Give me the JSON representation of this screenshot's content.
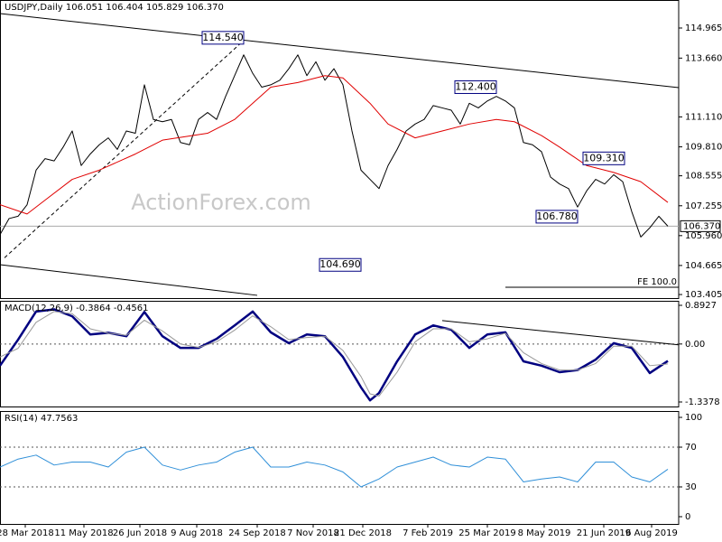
{
  "chart_data": [
    {
      "type": "line",
      "title": "USDJPY,Daily  106.051 106.404 105.829 106.370",
      "watermark": "ActionForex.com",
      "xlim": [
        0,
        376
      ],
      "ylim": [
        103.25,
        116.18
      ],
      "yticks": [
        114.965,
        {
          "value": 113.66,
          "label": "113.660"
        },
        {
          "value": 111.11,
          "label": "111.110"
        },
        {
          "value": 109.81,
          "label": "109.810"
        },
        108.555,
        107.255,
        {
          "value": 105.96,
          "label": "105.960"
        },
        104.665,
        103.405
      ],
      "hlines": [
        106.37
      ],
      "last_price": {
        "value": 106.37,
        "label": "106.370"
      },
      "series": [
        {
          "name": "Price",
          "color": "#000000",
          "width": 1,
          "x": [
            0,
            5,
            10,
            15,
            20,
            25,
            30,
            35,
            40,
            45,
            50,
            55,
            60,
            65,
            70,
            75,
            80,
            85,
            90,
            95,
            100,
            105,
            110,
            115,
            120,
            125,
            130,
            135,
            140,
            145,
            150,
            155,
            160,
            165,
            170,
            175,
            180,
            185,
            190,
            195,
            200,
            205,
            210,
            215,
            220,
            225,
            230,
            235,
            240,
            245,
            250,
            255,
            260,
            265,
            270,
            275,
            280,
            285,
            290,
            295,
            300,
            305,
            310,
            315,
            320,
            325,
            330,
            335,
            340,
            345,
            350,
            355,
            360,
            365,
            370
          ],
          "values": [
            106.0,
            106.7,
            106.8,
            107.3,
            108.8,
            109.3,
            109.2,
            109.8,
            110.5,
            109.0,
            109.5,
            109.9,
            110.2,
            109.7,
            110.5,
            110.4,
            112.5,
            111.0,
            110.9,
            111.0,
            110.0,
            109.9,
            111.0,
            111.3,
            111.0,
            112.0,
            112.9,
            113.8,
            113.0,
            112.4,
            112.5,
            112.7,
            113.2,
            113.8,
            112.9,
            113.5,
            112.7,
            113.2,
            112.5,
            110.5,
            108.8,
            108.4,
            108.0,
            109.0,
            109.7,
            110.5,
            110.8,
            111.0,
            111.6,
            111.5,
            111.4,
            110.8,
            111.7,
            111.5,
            111.8,
            112.0,
            111.8,
            111.5,
            110.0,
            109.9,
            109.6,
            108.5,
            108.2,
            108.0,
            107.2,
            107.9,
            108.4,
            108.2,
            108.6,
            108.3,
            107.0,
            105.9,
            106.3,
            106.8,
            106.37
          ]
        },
        {
          "name": "MA",
          "color": "#e00000",
          "width": 1,
          "x": [
            0,
            15,
            25,
            40,
            55,
            75,
            90,
            115,
            130,
            150,
            165,
            180,
            190,
            205,
            215,
            230,
            245,
            260,
            275,
            285,
            300,
            310,
            325,
            340,
            355,
            370
          ],
          "values": [
            107.3,
            106.9,
            107.5,
            108.4,
            108.8,
            109.5,
            110.1,
            110.4,
            111.0,
            112.4,
            112.6,
            112.9,
            112.8,
            111.7,
            110.8,
            110.2,
            110.5,
            110.8,
            111.0,
            110.9,
            110.3,
            109.8,
            109.0,
            108.7,
            108.3,
            107.4
          ]
        }
      ],
      "trendlines": [
        {
          "x": [
            0,
            376
          ],
          "values": [
            115.59,
            112.38
          ],
          "style": "solid"
        },
        {
          "x": [
            0,
            142.5
          ],
          "values": [
            104.7,
            103.37
          ],
          "style": "solid"
        },
        {
          "x": [
            2.5,
            135
          ],
          "values": [
            105.0,
            114.42
          ],
          "style": "dashed"
        },
        {
          "x": [
            280,
            376
          ],
          "values": [
            103.72,
            103.72
          ],
          "style": "solid"
        }
      ],
      "annotations": [
        {
          "text": "114.540",
          "x": 135,
          "y": 114.54,
          "boxed": true
        },
        {
          "text": "104.690",
          "x": 200,
          "y": 104.69,
          "boxed": true
        },
        {
          "text": "112.400",
          "x": 275,
          "y": 112.4,
          "boxed": true
        },
        {
          "text": "109.310",
          "x": 346,
          "y": 109.31,
          "boxed": true
        },
        {
          "text": "106.780",
          "x": 320,
          "y": 106.78,
          "boxed": true
        },
        {
          "text": "FE 100.0",
          "x": 376,
          "y": 103.95,
          "boxed": false
        }
      ]
    },
    {
      "type": "line",
      "title": "MACD(12,26,9) -0.3864 -0.4561",
      "xlim": [
        0,
        376
      ],
      "ylim": [
        -1.442,
        0.997
      ],
      "yticks": [
        0.8927,
        {
          "value": 0,
          "label": "0.00"
        },
        -1.3378
      ],
      "dashed_levels": [
        0
      ],
      "series": [
        {
          "name": "MACD",
          "color": "#000080",
          "width": 2.5,
          "x": [
            0,
            10,
            20,
            30,
            40,
            50,
            60,
            70,
            80,
            90,
            100,
            110,
            120,
            130,
            140,
            150,
            160,
            170,
            180,
            190,
            200,
            205,
            210,
            220,
            230,
            240,
            250,
            260,
            270,
            280,
            290,
            300,
            310,
            320,
            330,
            340,
            350,
            360,
            370
          ],
          "values": [
            -0.5,
            0.1,
            0.75,
            0.8,
            0.64,
            0.22,
            0.26,
            0.18,
            0.74,
            0.18,
            -0.09,
            -0.09,
            0.12,
            0.43,
            0.75,
            0.27,
            0.02,
            0.22,
            0.18,
            -0.3,
            -1.0,
            -1.3,
            -1.13,
            -0.4,
            0.22,
            0.43,
            0.33,
            -0.09,
            0.22,
            0.27,
            -0.4,
            -0.5,
            -0.65,
            -0.6,
            -0.36,
            0.02,
            -0.09,
            -0.67,
            -0.39
          ]
        },
        {
          "name": "Signal",
          "color": "#999999",
          "width": 1,
          "x": [
            0,
            10,
            20,
            30,
            40,
            50,
            60,
            70,
            80,
            90,
            100,
            110,
            120,
            130,
            140,
            150,
            160,
            170,
            180,
            190,
            200,
            205,
            210,
            220,
            230,
            240,
            250,
            260,
            270,
            280,
            290,
            300,
            310,
            320,
            330,
            340,
            350,
            360,
            370
          ],
          "values": [
            -0.3,
            -0.1,
            0.5,
            0.75,
            0.7,
            0.35,
            0.25,
            0.2,
            0.55,
            0.3,
            0.0,
            -0.08,
            0.05,
            0.32,
            0.65,
            0.4,
            0.1,
            0.15,
            0.18,
            -0.15,
            -0.75,
            -1.15,
            -1.2,
            -0.65,
            0.05,
            0.35,
            0.35,
            0.05,
            0.12,
            0.25,
            -0.2,
            -0.45,
            -0.6,
            -0.6,
            -0.45,
            -0.05,
            -0.05,
            -0.5,
            -0.46
          ]
        }
      ],
      "trendlines": [
        {
          "x": [
            245,
            376
          ],
          "values": [
            0.54,
            -0.02
          ],
          "style": "solid"
        }
      ]
    },
    {
      "type": "line",
      "title": "RSI(14) 47.7563",
      "xlim": [
        0,
        376
      ],
      "ylim": [
        -7.3,
        106.4
      ],
      "yticks": [
        100,
        70,
        30,
        0
      ],
      "dashed_levels": [
        70,
        30
      ],
      "xticks": [
        {
          "value": 14,
          "label": "28 Mar 2018"
        },
        {
          "value": 46.5,
          "label": "11 May 2018"
        },
        {
          "value": 77.5,
          "label": "26 Jun 2018"
        },
        {
          "value": 109,
          "label": "9 Aug 2018"
        },
        {
          "value": 142.5,
          "label": "24 Sep 2018"
        },
        {
          "value": 173.5,
          "label": "7 Nov 2018"
        },
        {
          "value": 201,
          "label": "21 Dec 2018"
        },
        {
          "value": 237,
          "label": "7 Feb 2019"
        },
        {
          "value": 270,
          "label": "25 Mar 2019"
        },
        {
          "value": 301.5,
          "label": "8 May 2019"
        },
        {
          "value": 334.5,
          "label": "21 Jun 2019"
        },
        {
          "value": 361,
          "label": "6 Aug 2019"
        }
      ],
      "series": [
        {
          "name": "RSI",
          "color": "#2f8fd8",
          "width": 1,
          "x": [
            0,
            10,
            20,
            30,
            40,
            50,
            60,
            70,
            80,
            90,
            100,
            110,
            120,
            130,
            140,
            150,
            160,
            170,
            180,
            190,
            200,
            210,
            220,
            230,
            240,
            250,
            260,
            270,
            280,
            290,
            300,
            310,
            320,
            330,
            340,
            350,
            360,
            370
          ],
          "values": [
            50,
            58,
            62,
            52,
            55,
            55,
            50,
            65,
            70,
            52,
            47,
            52,
            55,
            65,
            70,
            50,
            50,
            55,
            52,
            45,
            30,
            38,
            50,
            55,
            60,
            52,
            50,
            60,
            58,
            35,
            38,
            40,
            35,
            55,
            55,
            40,
            35,
            47.76
          ]
        }
      ]
    }
  ]
}
